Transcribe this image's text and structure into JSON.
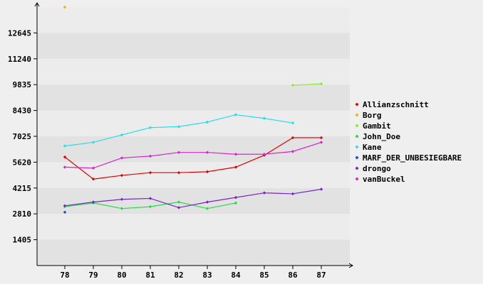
{
  "chart_data": {
    "type": "line",
    "title": "",
    "xlabel": "",
    "ylabel": "",
    "x": [
      "78",
      "79",
      "80",
      "81",
      "82",
      "83",
      "84",
      "85",
      "86",
      "87"
    ],
    "yticks": [
      "1405",
      "2810",
      "4215",
      "5620",
      "7025",
      "8430",
      "9835",
      "11240",
      "12645"
    ],
    "ylim": [
      0,
      14050
    ],
    "grid": "horizontal-bands",
    "legend_position": "right",
    "series": [
      {
        "name": "Allianzschnitt",
        "color": "#e00000",
        "values": [
          5900,
          4700,
          4900,
          5050,
          5050,
          5100,
          5350,
          6000,
          6950,
          6950
        ]
      },
      {
        "name": "Borg",
        "color": "#f0b400",
        "values": [
          14050,
          null,
          null,
          null,
          null,
          null,
          null,
          null,
          null,
          null
        ]
      },
      {
        "name": "Gambit",
        "color": "#88ee22",
        "values": [
          null,
          null,
          null,
          null,
          null,
          null,
          null,
          null,
          9800,
          9880
        ]
      },
      {
        "name": "John_Doe",
        "color": "#22dd44",
        "values": [
          3200,
          3400,
          3100,
          3200,
          3450,
          3100,
          3400,
          null,
          null,
          null
        ]
      },
      {
        "name": "Kane",
        "color": "#22ddee",
        "values": [
          6500,
          6700,
          7100,
          7500,
          7550,
          7800,
          8200,
          8000,
          7750,
          null
        ]
      },
      {
        "name": "MARF_DER_UNBESIEGBARE",
        "color": "#2244ee",
        "values": [
          2900,
          null,
          null,
          null,
          null,
          null,
          null,
          null,
          null,
          null
        ]
      },
      {
        "name": "drongo",
        "color": "#7722cc",
        "values": [
          3250,
          3450,
          3600,
          3650,
          3150,
          3450,
          3700,
          3950,
          3900,
          4150
        ]
      },
      {
        "name": "vanBuckel",
        "color": "#dd22cc",
        "values": [
          5350,
          5300,
          5850,
          5950,
          6150,
          6150,
          6050,
          6050,
          6200,
          6700
        ]
      }
    ]
  }
}
